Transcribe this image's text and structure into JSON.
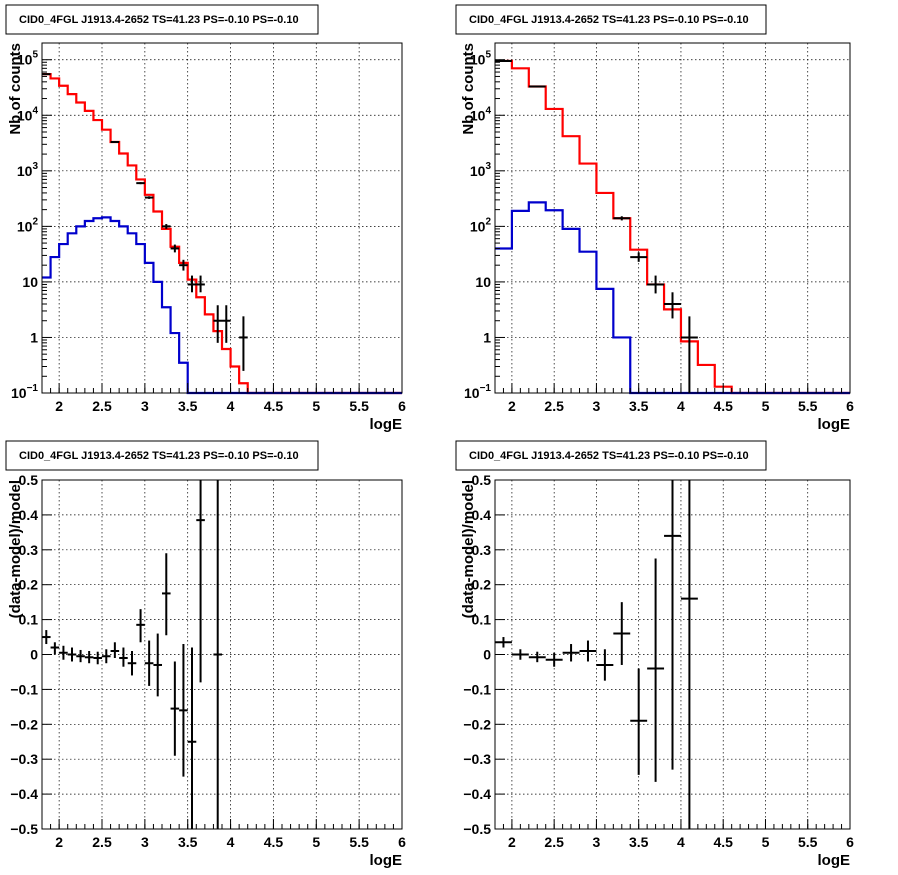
{
  "chart_data": [
    {
      "type": "histogram",
      "title": "CID0_4FGL J1913.4-2652 TS=41.23 PS=-0.10 PS=-0.10",
      "xlabel": "logE",
      "ylabel": "Nb of counts",
      "xlim": [
        1.8,
        6.0
      ],
      "ylim": [
        0.1,
        200000
      ],
      "ylog": true,
      "grid": true,
      "bin_edges": [
        1.8,
        1.9,
        2.0,
        2.1,
        2.2,
        2.3,
        2.4,
        2.5,
        2.6,
        2.7,
        2.8,
        2.9,
        3.0,
        3.1,
        3.2,
        3.3,
        3.4,
        3.5,
        3.6,
        3.7,
        3.8,
        3.9,
        4.0,
        4.1,
        4.2,
        4.3,
        4.4,
        4.5,
        4.6,
        4.7,
        4.8,
        4.9,
        5.0,
        5.1,
        5.2,
        5.3,
        5.4,
        5.5,
        5.6,
        5.7,
        5.8,
        5.9,
        6.0
      ],
      "series": [
        {
          "color": "#ff0000",
          "values": [
            55000,
            46000,
            34000,
            24000,
            17000,
            12000,
            8200,
            5500,
            3300,
            2050,
            1250,
            700,
            370,
            185,
            90,
            43,
            22,
            11,
            5.3,
            2.6,
            1.3,
            0.62,
            0.3,
            0.15,
            0.1,
            0.1,
            0.1,
            0.1,
            0.1,
            0.1,
            0.1,
            0.1,
            0.1,
            0.1,
            0.1,
            0.1,
            0.1,
            0.1,
            0.1,
            0.1,
            0.1,
            0.1
          ]
        },
        {
          "color": "#0000cc",
          "values": [
            12,
            28,
            48,
            75,
            100,
            125,
            140,
            145,
            125,
            100,
            75,
            48,
            22,
            10,
            3.5,
            1.2,
            0.35,
            0.1,
            0.1,
            0.1,
            0.1,
            0.1,
            0.1,
            0.1,
            0.1,
            0.1,
            0.1,
            0.1,
            0.1,
            0.1,
            0.1,
            0.1,
            0.1,
            0.1,
            0.1,
            0.1,
            0.1,
            0.1,
            0.1,
            0.1,
            0.1,
            0.1
          ]
        }
      ],
      "points": [
        {
          "x": 1.85,
          "y": 55000,
          "lo": 54000,
          "hi": 56000,
          "xerr": 0.05
        },
        {
          "x": 2.65,
          "y": 3300,
          "lo": 3200,
          "hi": 3400,
          "xerr": 0.05
        },
        {
          "x": 2.95,
          "y": 600,
          "lo": 575,
          "hi": 625,
          "xerr": 0.05
        },
        {
          "x": 3.05,
          "y": 330,
          "lo": 312,
          "hi": 348,
          "xerr": 0.05
        },
        {
          "x": 3.25,
          "y": 100,
          "lo": 90,
          "hi": 110,
          "xerr": 0.05
        },
        {
          "x": 3.35,
          "y": 40,
          "lo": 34,
          "hi": 47,
          "xerr": 0.05
        },
        {
          "x": 3.45,
          "y": 20,
          "lo": 16,
          "hi": 25,
          "xerr": 0.05
        },
        {
          "x": 3.55,
          "y": 9,
          "lo": 6.5,
          "hi": 13,
          "xerr": 0.05
        },
        {
          "x": 3.65,
          "y": 9,
          "lo": 6.5,
          "hi": 13,
          "xerr": 0.05
        },
        {
          "x": 3.85,
          "y": 2,
          "lo": 0.8,
          "hi": 3.8,
          "xerr": 0.05
        },
        {
          "x": 3.95,
          "y": 2,
          "lo": 0.8,
          "hi": 3.8,
          "xerr": 0.05
        },
        {
          "x": 4.15,
          "y": 1,
          "lo": 0.25,
          "hi": 2.4,
          "xerr": 0.05
        }
      ]
    },
    {
      "type": "histogram",
      "title": "CID0_4FGL J1913.4-2652 TS=41.23 PS=-0.10 PS=-0.10",
      "xlabel": "logE",
      "ylabel": "Nb of counts",
      "xlim": [
        1.8,
        6.0
      ],
      "ylim": [
        0.1,
        200000
      ],
      "ylog": true,
      "grid": true,
      "bin_edges": [
        1.8,
        2.0,
        2.2,
        2.4,
        2.6,
        2.8,
        3.0,
        3.2,
        3.4,
        3.6,
        3.8,
        4.0,
        4.2,
        4.4,
        4.6,
        4.8,
        5.0,
        5.2,
        5.4,
        5.6,
        5.8,
        6.0
      ],
      "series": [
        {
          "color": "#ff0000",
          "values": [
            95000,
            70000,
            33000,
            13000,
            4200,
            1350,
            400,
            140,
            38,
            9,
            3.2,
            0.85,
            0.32,
            0.13,
            0.1,
            0.1,
            0.1,
            0.1,
            0.1,
            0.1,
            0.1
          ]
        },
        {
          "color": "#0000cc",
          "values": [
            40,
            190,
            270,
            195,
            90,
            35,
            7.5,
            1,
            0.1,
            0.1,
            0.1,
            0.1,
            0.1,
            0.1,
            0.1,
            0.1,
            0.1,
            0.1,
            0.1,
            0.1,
            0.1
          ]
        }
      ],
      "points": [
        {
          "x": 1.9,
          "y": 95000,
          "lo": 93500,
          "hi": 96500,
          "xerr": 0.1
        },
        {
          "x": 2.3,
          "y": 33000,
          "lo": 32200,
          "hi": 33800,
          "xerr": 0.1
        },
        {
          "x": 3.3,
          "y": 140,
          "lo": 128,
          "hi": 152,
          "xerr": 0.1
        },
        {
          "x": 3.5,
          "y": 28,
          "lo": 23,
          "hi": 34,
          "xerr": 0.1
        },
        {
          "x": 3.7,
          "y": 9,
          "lo": 6.2,
          "hi": 13,
          "xerr": 0.1
        },
        {
          "x": 3.9,
          "y": 4,
          "lo": 2.2,
          "hi": 6.5,
          "xerr": 0.1
        },
        {
          "x": 4.1,
          "y": 1,
          "lo": 0.1,
          "hi": 2.4,
          "xerr": 0.1
        }
      ]
    },
    {
      "type": "scatter",
      "title": "CID0_4FGL J1913.4-2652 TS=41.23 PS=-0.10 PS=-0.10",
      "xlabel": "logE",
      "ylabel": "(data-model)/model",
      "xlim": [
        1.8,
        6.0
      ],
      "ylim": [
        -0.5,
        0.5
      ],
      "ylog": false,
      "grid": true,
      "points": [
        {
          "x": 1.85,
          "y": 0.05,
          "lo": 0.03,
          "hi": 0.07,
          "xerr": 0.05
        },
        {
          "x": 1.95,
          "y": 0.02,
          "lo": 0.0,
          "hi": 0.035,
          "xerr": 0.05
        },
        {
          "x": 2.05,
          "y": 0.005,
          "lo": -0.015,
          "hi": 0.025,
          "xerr": 0.05
        },
        {
          "x": 2.15,
          "y": 0.0,
          "lo": -0.02,
          "hi": 0.02,
          "xerr": 0.05
        },
        {
          "x": 2.25,
          "y": -0.005,
          "lo": -0.022,
          "hi": 0.013,
          "xerr": 0.05
        },
        {
          "x": 2.35,
          "y": -0.008,
          "lo": -0.025,
          "hi": 0.01,
          "xerr": 0.05
        },
        {
          "x": 2.45,
          "y": -0.01,
          "lo": -0.028,
          "hi": 0.008,
          "xerr": 0.05
        },
        {
          "x": 2.55,
          "y": -0.005,
          "lo": -0.025,
          "hi": 0.015,
          "xerr": 0.05
        },
        {
          "x": 2.65,
          "y": 0.01,
          "lo": -0.01,
          "hi": 0.035,
          "xerr": 0.05
        },
        {
          "x": 2.75,
          "y": -0.01,
          "lo": -0.035,
          "hi": 0.02,
          "xerr": 0.05
        },
        {
          "x": 2.85,
          "y": -0.025,
          "lo": -0.06,
          "hi": 0.01,
          "xerr": 0.05
        },
        {
          "x": 2.95,
          "y": 0.085,
          "lo": 0.035,
          "hi": 0.13,
          "xerr": 0.05
        },
        {
          "x": 3.05,
          "y": -0.025,
          "lo": -0.09,
          "hi": 0.04,
          "xerr": 0.05
        },
        {
          "x": 3.15,
          "y": -0.03,
          "lo": -0.12,
          "hi": 0.06,
          "xerr": 0.05
        },
        {
          "x": 3.25,
          "y": 0.175,
          "lo": 0.055,
          "hi": 0.29,
          "xerr": 0.05
        },
        {
          "x": 3.35,
          "y": -0.155,
          "lo": -0.29,
          "hi": -0.02,
          "xerr": 0.05
        },
        {
          "x": 3.45,
          "y": -0.16,
          "lo": -0.35,
          "hi": 0.03,
          "xerr": 0.05
        },
        {
          "x": 3.55,
          "y": -0.25,
          "lo": -0.5,
          "hi": 0.02,
          "xerr": 0.05
        },
        {
          "x": 3.65,
          "y": 0.385,
          "lo": -0.08,
          "hi": 0.5,
          "xerr": 0.05
        },
        {
          "x": 3.85,
          "y": 0.0,
          "lo": -0.5,
          "hi": 0.5,
          "xerr": 0.05
        }
      ]
    },
    {
      "type": "scatter",
      "title": "CID0_4FGL J1913.4-2652 TS=41.23 PS=-0.10 PS=-0.10",
      "xlabel": "logE",
      "ylabel": "(data-model)/model",
      "xlim": [
        1.8,
        6.0
      ],
      "ylim": [
        -0.5,
        0.5
      ],
      "ylog": false,
      "grid": true,
      "points": [
        {
          "x": 1.9,
          "y": 0.035,
          "lo": 0.02,
          "hi": 0.05,
          "xerr": 0.1
        },
        {
          "x": 2.1,
          "y": 0.0,
          "lo": -0.015,
          "hi": 0.015,
          "xerr": 0.1
        },
        {
          "x": 2.3,
          "y": -0.008,
          "lo": -0.022,
          "hi": 0.008,
          "xerr": 0.1
        },
        {
          "x": 2.5,
          "y": -0.015,
          "lo": -0.035,
          "hi": 0.005,
          "xerr": 0.1
        },
        {
          "x": 2.7,
          "y": 0.005,
          "lo": -0.02,
          "hi": 0.03,
          "xerr": 0.1
        },
        {
          "x": 2.9,
          "y": 0.01,
          "lo": -0.02,
          "hi": 0.04,
          "xerr": 0.1
        },
        {
          "x": 3.1,
          "y": -0.03,
          "lo": -0.075,
          "hi": 0.015,
          "xerr": 0.1
        },
        {
          "x": 3.3,
          "y": 0.06,
          "lo": -0.03,
          "hi": 0.15,
          "xerr": 0.1
        },
        {
          "x": 3.5,
          "y": -0.19,
          "lo": -0.345,
          "hi": -0.04,
          "xerr": 0.1
        },
        {
          "x": 3.7,
          "y": -0.04,
          "lo": -0.365,
          "hi": 0.275,
          "xerr": 0.1
        },
        {
          "x": 3.9,
          "y": 0.34,
          "lo": -0.33,
          "hi": 0.5,
          "xerr": 0.1
        },
        {
          "x": 4.1,
          "y": 0.16,
          "lo": -0.5,
          "hi": 0.5,
          "xerr": 0.1
        }
      ]
    }
  ],
  "tick_labels": {
    "x": [
      "2",
      "2.5",
      "3",
      "3.5",
      "4",
      "4.5",
      "5",
      "5.5",
      "6"
    ],
    "y_log": [
      "10",
      "1",
      "10",
      "10",
      "10",
      "10",
      "10",
      "10"
    ],
    "y_log_exponents": [
      "−1",
      "",
      "",
      "2",
      "3",
      "4",
      "5"
    ],
    "y_lin": [
      "−0.5",
      "−0.4",
      "−0.3",
      "−0.2",
      "−0.1",
      "0",
      "0.1",
      "0.2",
      "0.3",
      "0.4",
      "0.5"
    ]
  }
}
